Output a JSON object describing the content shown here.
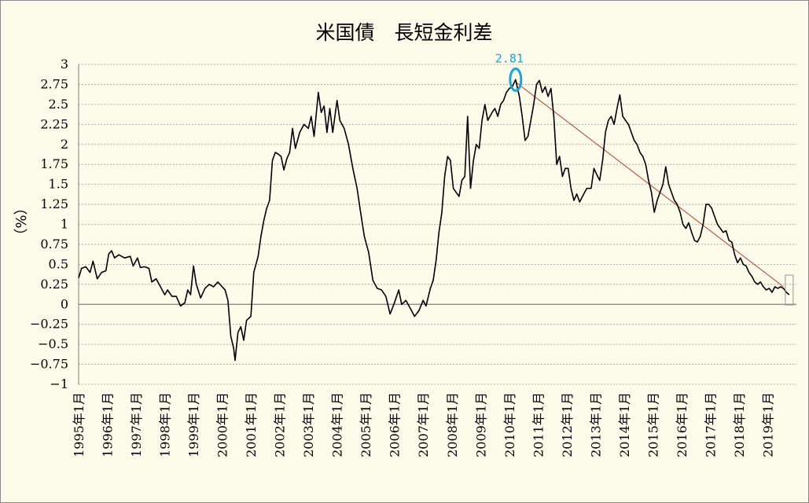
{
  "chart_data": {
    "type": "line",
    "title": "米国債　長短金利差",
    "ylabel": "（%）",
    "xlabel": "",
    "ylim": [
      -1,
      3
    ],
    "yticks": [
      "3",
      "2.75",
      "2.5",
      "2.25",
      "2",
      "1.75",
      "1.5",
      "1.25",
      "1",
      "0.75",
      "0.5",
      "0.25",
      "0",
      "−0.25",
      "−0.5",
      "−0.75",
      "−1"
    ],
    "ytick_values": [
      3,
      2.75,
      2.5,
      2.25,
      2,
      1.75,
      1.5,
      1.25,
      1,
      0.75,
      0.5,
      0.25,
      0,
      -0.25,
      -0.5,
      -0.75,
      -1
    ],
    "x_start_year": 1995,
    "x_end_year": 2020.0,
    "xticks": [
      "1995年1月",
      "1996年1月",
      "1997年1月",
      "1998年1月",
      "1999年1月",
      "2000年1月",
      "2001年1月",
      "2002年1月",
      "2003年1月",
      "2004年1月",
      "2005年1月",
      "2006年1月",
      "2007年1月",
      "2008年1月",
      "2009年1月",
      "2010年1月",
      "2011年1月",
      "2012年1月",
      "2013年1月",
      "2014年1月",
      "2015年1月",
      "2016年1月",
      "2017年1月",
      "2018年1月",
      "2019年1月"
    ],
    "grid": true,
    "line_color": "#000000",
    "trend_color": "#c0392b",
    "highlight_color": "#1aa3d9",
    "peak_annotation": "2.81",
    "peak": [
      2010.22,
      2.81
    ],
    "trend_line": [
      [
        2010.22,
        2.78
      ],
      [
        2019.55,
        0.22
      ]
    ],
    "series": [
      {
        "values": [
          [
            1995.0,
            0.33
          ],
          [
            1995.1,
            0.45
          ],
          [
            1995.25,
            0.47
          ],
          [
            1995.4,
            0.4
          ],
          [
            1995.5,
            0.54
          ],
          [
            1995.65,
            0.32
          ],
          [
            1995.8,
            0.4
          ],
          [
            1995.95,
            0.42
          ],
          [
            1996.05,
            0.63
          ],
          [
            1996.15,
            0.67
          ],
          [
            1996.25,
            0.58
          ],
          [
            1996.4,
            0.62
          ],
          [
            1996.6,
            0.58
          ],
          [
            1996.8,
            0.6
          ],
          [
            1996.9,
            0.48
          ],
          [
            1997.05,
            0.58
          ],
          [
            1997.15,
            0.46
          ],
          [
            1997.3,
            0.47
          ],
          [
            1997.45,
            0.45
          ],
          [
            1997.55,
            0.28
          ],
          [
            1997.7,
            0.32
          ],
          [
            1997.85,
            0.22
          ],
          [
            1998.0,
            0.12
          ],
          [
            1998.1,
            0.18
          ],
          [
            1998.25,
            0.1
          ],
          [
            1998.4,
            0.1
          ],
          [
            1998.55,
            -0.02
          ],
          [
            1998.7,
            0.02
          ],
          [
            1998.8,
            0.18
          ],
          [
            1998.9,
            0.12
          ],
          [
            1999.0,
            0.48
          ],
          [
            1999.1,
            0.25
          ],
          [
            1999.25,
            0.08
          ],
          [
            1999.4,
            0.2
          ],
          [
            1999.55,
            0.25
          ],
          [
            1999.7,
            0.22
          ],
          [
            1999.85,
            0.28
          ],
          [
            2000.0,
            0.22
          ],
          [
            2000.1,
            0.18
          ],
          [
            2000.2,
            0.05
          ],
          [
            2000.3,
            -0.4
          ],
          [
            2000.4,
            -0.55
          ],
          [
            2000.45,
            -0.7
          ],
          [
            2000.55,
            -0.35
          ],
          [
            2000.65,
            -0.28
          ],
          [
            2000.75,
            -0.45
          ],
          [
            2000.85,
            -0.2
          ],
          [
            2001.0,
            -0.15
          ],
          [
            2001.1,
            0.4
          ],
          [
            2001.25,
            0.6
          ],
          [
            2001.35,
            0.85
          ],
          [
            2001.45,
            1.05
          ],
          [
            2001.55,
            1.2
          ],
          [
            2001.65,
            1.3
          ],
          [
            2001.75,
            1.8
          ],
          [
            2001.85,
            1.9
          ],
          [
            2001.95,
            1.88
          ],
          [
            2002.05,
            1.85
          ],
          [
            2002.15,
            1.68
          ],
          [
            2002.25,
            1.82
          ],
          [
            2002.35,
            1.9
          ],
          [
            2002.45,
            2.2
          ],
          [
            2002.55,
            1.95
          ],
          [
            2002.7,
            2.15
          ],
          [
            2002.85,
            2.25
          ],
          [
            2003.0,
            2.2
          ],
          [
            2003.1,
            2.35
          ],
          [
            2003.2,
            2.1
          ],
          [
            2003.35,
            2.65
          ],
          [
            2003.45,
            2.4
          ],
          [
            2003.55,
            2.48
          ],
          [
            2003.65,
            2.15
          ],
          [
            2003.75,
            2.45
          ],
          [
            2003.85,
            2.15
          ],
          [
            2004.0,
            2.55
          ],
          [
            2004.1,
            2.3
          ],
          [
            2004.25,
            2.2
          ],
          [
            2004.4,
            2.0
          ],
          [
            2004.55,
            1.7
          ],
          [
            2004.7,
            1.45
          ],
          [
            2004.8,
            1.2
          ],
          [
            2004.95,
            0.85
          ],
          [
            2005.1,
            0.65
          ],
          [
            2005.25,
            0.3
          ],
          [
            2005.4,
            0.2
          ],
          [
            2005.55,
            0.18
          ],
          [
            2005.7,
            0.1
          ],
          [
            2005.85,
            -0.12
          ],
          [
            2006.0,
            0.02
          ],
          [
            2006.15,
            0.18
          ],
          [
            2006.25,
            0.0
          ],
          [
            2006.4,
            0.05
          ],
          [
            2006.55,
            -0.05
          ],
          [
            2006.7,
            -0.15
          ],
          [
            2006.85,
            -0.08
          ],
          [
            2007.0,
            0.05
          ],
          [
            2007.1,
            -0.02
          ],
          [
            2007.25,
            0.2
          ],
          [
            2007.35,
            0.3
          ],
          [
            2007.45,
            0.55
          ],
          [
            2007.55,
            0.9
          ],
          [
            2007.65,
            1.15
          ],
          [
            2007.75,
            1.6
          ],
          [
            2007.85,
            1.85
          ],
          [
            2007.95,
            1.8
          ],
          [
            2008.05,
            1.45
          ],
          [
            2008.15,
            1.4
          ],
          [
            2008.25,
            1.35
          ],
          [
            2008.35,
            1.55
          ],
          [
            2008.45,
            1.6
          ],
          [
            2008.55,
            2.35
          ],
          [
            2008.65,
            1.45
          ],
          [
            2008.75,
            1.8
          ],
          [
            2008.85,
            2.0
          ],
          [
            2008.95,
            1.95
          ],
          [
            2009.05,
            2.3
          ],
          [
            2009.15,
            2.5
          ],
          [
            2009.25,
            2.3
          ],
          [
            2009.4,
            2.4
          ],
          [
            2009.5,
            2.45
          ],
          [
            2009.6,
            2.35
          ],
          [
            2009.7,
            2.5
          ],
          [
            2009.8,
            2.55
          ],
          [
            2009.9,
            2.65
          ],
          [
            2010.0,
            2.7
          ],
          [
            2010.1,
            2.72
          ],
          [
            2010.22,
            2.81
          ],
          [
            2010.35,
            2.6
          ],
          [
            2010.45,
            2.35
          ],
          [
            2010.55,
            2.05
          ],
          [
            2010.65,
            2.1
          ],
          [
            2010.75,
            2.3
          ],
          [
            2010.85,
            2.5
          ],
          [
            2010.95,
            2.75
          ],
          [
            2011.05,
            2.8
          ],
          [
            2011.15,
            2.65
          ],
          [
            2011.25,
            2.72
          ],
          [
            2011.35,
            2.6
          ],
          [
            2011.45,
            2.7
          ],
          [
            2011.55,
            2.35
          ],
          [
            2011.65,
            1.75
          ],
          [
            2011.75,
            1.85
          ],
          [
            2011.85,
            1.6
          ],
          [
            2011.95,
            1.7
          ],
          [
            2012.05,
            1.7
          ],
          [
            2012.15,
            1.45
          ],
          [
            2012.25,
            1.3
          ],
          [
            2012.35,
            1.38
          ],
          [
            2012.45,
            1.28
          ],
          [
            2012.55,
            1.35
          ],
          [
            2012.7,
            1.45
          ],
          [
            2012.85,
            1.45
          ],
          [
            2012.95,
            1.7
          ],
          [
            2013.05,
            1.62
          ],
          [
            2013.15,
            1.55
          ],
          [
            2013.25,
            1.8
          ],
          [
            2013.35,
            2.15
          ],
          [
            2013.45,
            2.3
          ],
          [
            2013.55,
            2.35
          ],
          [
            2013.65,
            2.25
          ],
          [
            2013.75,
            2.45
          ],
          [
            2013.85,
            2.62
          ],
          [
            2013.95,
            2.35
          ],
          [
            2014.05,
            2.3
          ],
          [
            2014.15,
            2.25
          ],
          [
            2014.25,
            2.15
          ],
          [
            2014.35,
            2.05
          ],
          [
            2014.45,
            2.0
          ],
          [
            2014.55,
            1.9
          ],
          [
            2014.65,
            1.85
          ],
          [
            2014.75,
            1.75
          ],
          [
            2014.85,
            1.55
          ],
          [
            2014.95,
            1.4
          ],
          [
            2015.05,
            1.15
          ],
          [
            2015.15,
            1.3
          ],
          [
            2015.25,
            1.4
          ],
          [
            2015.35,
            1.5
          ],
          [
            2015.45,
            1.72
          ],
          [
            2015.55,
            1.5
          ],
          [
            2015.65,
            1.4
          ],
          [
            2015.75,
            1.3
          ],
          [
            2015.85,
            1.25
          ],
          [
            2015.95,
            1.15
          ],
          [
            2016.05,
            1.0
          ],
          [
            2016.15,
            0.95
          ],
          [
            2016.25,
            1.02
          ],
          [
            2016.35,
            0.9
          ],
          [
            2016.45,
            0.8
          ],
          [
            2016.55,
            0.78
          ],
          [
            2016.65,
            0.85
          ],
          [
            2016.75,
            1.0
          ],
          [
            2016.85,
            1.25
          ],
          [
            2016.95,
            1.25
          ],
          [
            2017.05,
            1.2
          ],
          [
            2017.15,
            1.1
          ],
          [
            2017.25,
            1.0
          ],
          [
            2017.35,
            0.95
          ],
          [
            2017.45,
            0.9
          ],
          [
            2017.55,
            0.92
          ],
          [
            2017.65,
            0.8
          ],
          [
            2017.75,
            0.78
          ],
          [
            2017.85,
            0.62
          ],
          [
            2017.95,
            0.52
          ],
          [
            2018.05,
            0.58
          ],
          [
            2018.15,
            0.5
          ],
          [
            2018.25,
            0.48
          ],
          [
            2018.35,
            0.4
          ],
          [
            2018.45,
            0.35
          ],
          [
            2018.55,
            0.28
          ],
          [
            2018.65,
            0.25
          ],
          [
            2018.75,
            0.28
          ],
          [
            2018.85,
            0.22
          ],
          [
            2018.95,
            0.18
          ],
          [
            2019.05,
            0.2
          ],
          [
            2019.15,
            0.15
          ],
          [
            2019.25,
            0.22
          ],
          [
            2019.35,
            0.2
          ],
          [
            2019.45,
            0.22
          ],
          [
            2019.55,
            0.2
          ],
          [
            2019.65,
            0.15
          ],
          [
            2019.75,
            0.12
          ]
        ]
      }
    ]
  }
}
